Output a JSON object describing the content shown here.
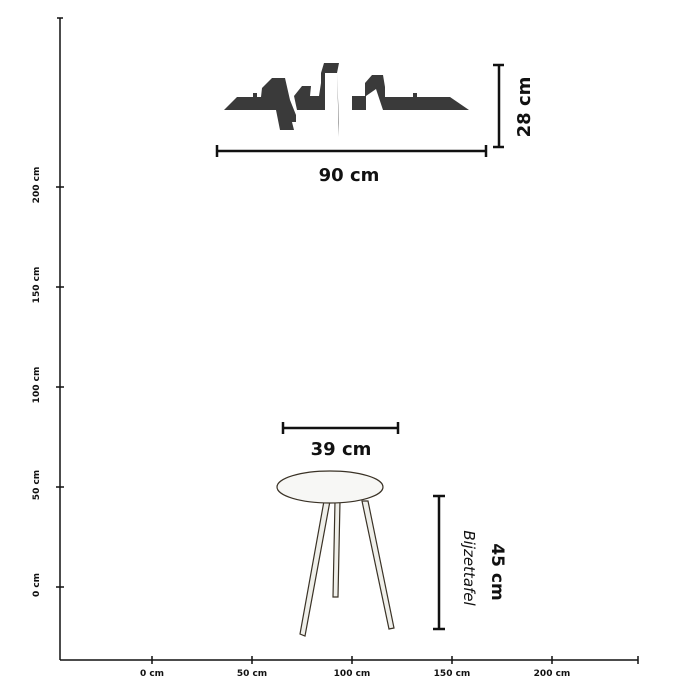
{
  "axes": {
    "x_ticks": [
      "0 cm",
      "50 cm",
      "100 cm",
      "150 cm",
      "200 cm"
    ],
    "y_ticks": [
      "0 cm",
      "50 cm",
      "100 cm",
      "150 cm",
      "200 cm"
    ]
  },
  "shelf": {
    "width_label": "90 cm",
    "height_label": "28 cm",
    "color": "#3a3a3a"
  },
  "side_table": {
    "width_label": "39 cm",
    "height_label": "45 cm",
    "name": "Bijzettafel",
    "top_color": "#f7f7f5"
  }
}
